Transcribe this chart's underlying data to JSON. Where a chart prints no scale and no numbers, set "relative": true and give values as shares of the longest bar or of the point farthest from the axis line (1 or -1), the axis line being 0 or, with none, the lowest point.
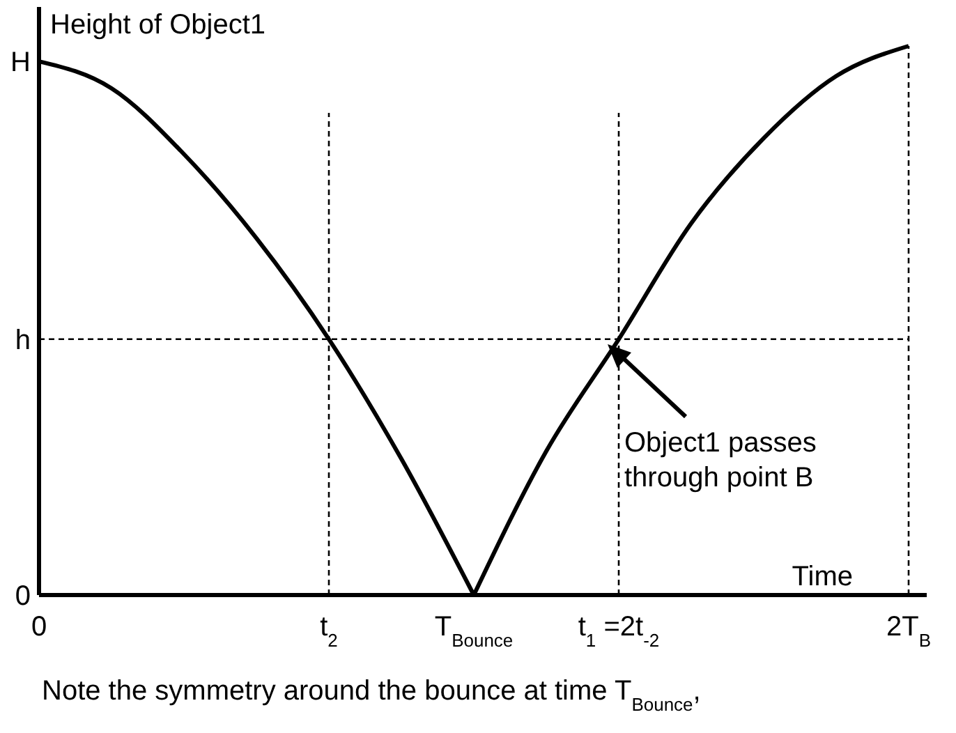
{
  "chart_data": {
    "type": "line",
    "relative": true,
    "ylabel": "Height of Object1",
    "xlabel": "Time",
    "categories": [
      "0",
      null,
      null,
      null,
      "t$_{2}$",
      null,
      "T$_{Bounce}$",
      null,
      "t$_{1}$ =2t$_{-2}$",
      null,
      null,
      null,
      "2T$_{B}$"
    ],
    "series": [
      {
        "color": "#000000",
        "values": [
          0.972,
          0.923,
          0.803,
          0.65,
          0.466,
          0.248,
          0,
          0.262,
          0.466,
          0.677,
          0.832,
          0.945,
          1
        ]
      }
    ],
    "ref_lines": [
      {
        "axis": "y",
        "value": 0.466,
        "label": "h",
        "line_style": "dashed"
      },
      {
        "axis": "x",
        "value": "t$_{2}$",
        "line_style": "dashed"
      },
      {
        "axis": "x",
        "value": "t$_{1}$ =2t$_{-2}$",
        "line_style": "dashed"
      },
      {
        "axis": "x",
        "value": "2T$_{B}$",
        "line_style": "dashed"
      }
    ],
    "annotations": [
      {
        "text": "H",
        "x": "0",
        "y": 0.972
      },
      "0",
      "Object1 passes\nthrough point B",
      "Note the symmetry around the bounce at time T$_{Bounce}$,"
    ],
    "grid": false,
    "marker": "none",
    "line_style": "solid"
  }
}
